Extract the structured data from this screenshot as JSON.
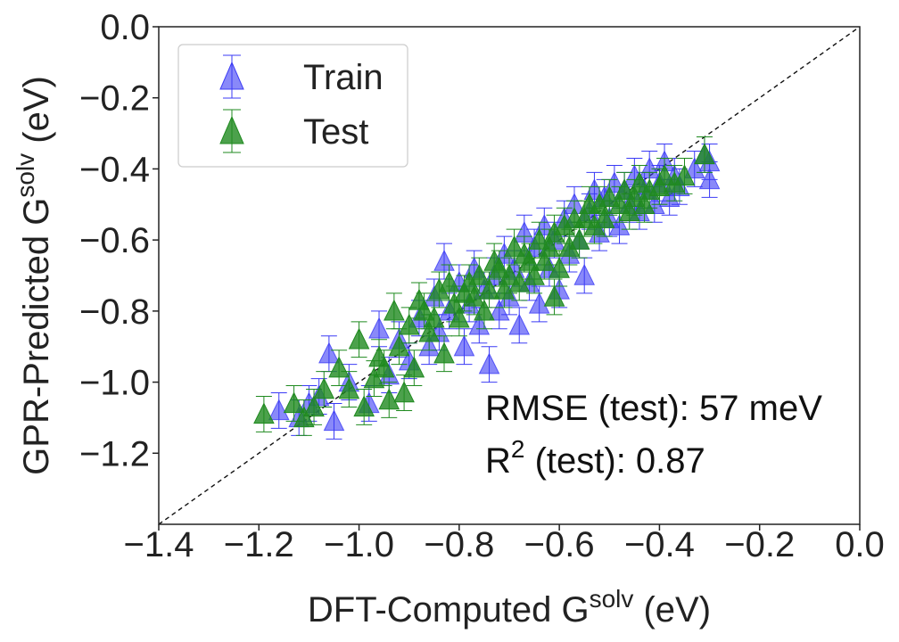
{
  "chart_data": {
    "type": "scatter",
    "title": "",
    "xlabel": {
      "prefix": "DFT-Computed G",
      "sup": "solv",
      "suffix": " (eV)"
    },
    "ylabel": {
      "prefix": "GPR-Predicted G",
      "sup": "solv",
      "suffix": " (eV)"
    },
    "xlim": [
      -1.4,
      0.0
    ],
    "ylim": [
      -1.4,
      0.0
    ],
    "x_ticks": [
      -1.4,
      -1.2,
      -1.0,
      -0.8,
      -0.6,
      -0.4,
      -0.2,
      0.0
    ],
    "x_tick_labels": [
      "−1.4",
      "−1.2",
      "−1.0",
      "−0.8",
      "−0.6",
      "−0.4",
      "−0.2",
      "0.0"
    ],
    "y_ticks": [
      -1.2,
      -1.0,
      -0.8,
      -0.6,
      -0.4,
      -0.2,
      0.0
    ],
    "y_tick_labels": [
      "−1.2",
      "−1.0",
      "−0.8",
      "−0.6",
      "−0.4",
      "−0.2",
      "0.0"
    ],
    "grid": false,
    "legend_position": "top-left",
    "parity_line": true,
    "series": [
      {
        "name": "Train",
        "color": "#3b3bf5",
        "marker": "triangle-up",
        "error_bar": 0.05,
        "points": [
          [
            -1.16,
            -1.08
          ],
          [
            -1.12,
            -1.1
          ],
          [
            -1.1,
            -1.06
          ],
          [
            -1.08,
            -1.04
          ],
          [
            -1.05,
            -1.11
          ],
          [
            -1.06,
            -0.92
          ],
          [
            -1.02,
            -1.0
          ],
          [
            -0.98,
            -1.06
          ],
          [
            -0.96,
            -0.85
          ],
          [
            -0.94,
            -0.98
          ],
          [
            -0.92,
            -0.88
          ],
          [
            -0.9,
            -0.94
          ],
          [
            -0.88,
            -0.82
          ],
          [
            -0.86,
            -0.9
          ],
          [
            -0.85,
            -0.76
          ],
          [
            -0.84,
            -0.86
          ],
          [
            -0.83,
            -0.66
          ],
          [
            -0.82,
            -0.8
          ],
          [
            -0.8,
            -0.72
          ],
          [
            -0.79,
            -0.9
          ],
          [
            -0.78,
            -0.78
          ],
          [
            -0.77,
            -0.68
          ],
          [
            -0.76,
            -0.84
          ],
          [
            -0.75,
            -0.74
          ],
          [
            -0.74,
            -0.95
          ],
          [
            -0.73,
            -0.7
          ],
          [
            -0.72,
            -0.8
          ],
          [
            -0.71,
            -0.64
          ],
          [
            -0.7,
            -0.76
          ],
          [
            -0.69,
            -0.68
          ],
          [
            -0.68,
            -0.84
          ],
          [
            -0.67,
            -0.58
          ],
          [
            -0.66,
            -0.72
          ],
          [
            -0.65,
            -0.62
          ],
          [
            -0.64,
            -0.78
          ],
          [
            -0.63,
            -0.56
          ],
          [
            -0.62,
            -0.68
          ],
          [
            -0.61,
            -0.6
          ],
          [
            -0.6,
            -0.74
          ],
          [
            -0.59,
            -0.54
          ],
          [
            -0.58,
            -0.64
          ],
          [
            -0.57,
            -0.5
          ],
          [
            -0.56,
            -0.6
          ],
          [
            -0.55,
            -0.7
          ],
          [
            -0.54,
            -0.52
          ],
          [
            -0.53,
            -0.46
          ],
          [
            -0.52,
            -0.58
          ],
          [
            -0.51,
            -0.48
          ],
          [
            -0.5,
            -0.54
          ],
          [
            -0.49,
            -0.44
          ],
          [
            -0.48,
            -0.56
          ],
          [
            -0.47,
            -0.46
          ],
          [
            -0.46,
            -0.5
          ],
          [
            -0.45,
            -0.42
          ],
          [
            -0.44,
            -0.52
          ],
          [
            -0.43,
            -0.46
          ],
          [
            -0.42,
            -0.4
          ],
          [
            -0.41,
            -0.5
          ],
          [
            -0.4,
            -0.44
          ],
          [
            -0.39,
            -0.38
          ],
          [
            -0.38,
            -0.48
          ],
          [
            -0.37,
            -0.42
          ],
          [
            -0.36,
            -0.45
          ],
          [
            -0.31,
            -0.36
          ],
          [
            -0.3,
            -0.38
          ],
          [
            -0.3,
            -0.43
          ],
          [
            -0.33,
            -0.4
          ]
        ]
      },
      {
        "name": "Test",
        "color": "#1f8a1f",
        "marker": "triangle-up",
        "error_bar": 0.05,
        "points": [
          [
            -1.19,
            -1.09
          ],
          [
            -1.13,
            -1.06
          ],
          [
            -1.09,
            -1.07
          ],
          [
            -1.07,
            -1.02
          ],
          [
            -1.04,
            -0.96
          ],
          [
            -1.02,
            -1.02
          ],
          [
            -1.0,
            -0.88
          ],
          [
            -0.99,
            -1.07
          ],
          [
            -0.97,
            -0.99
          ],
          [
            -0.95,
            -0.96
          ],
          [
            -0.94,
            -1.05
          ],
          [
            -0.93,
            -0.8
          ],
          [
            -0.91,
            -1.03
          ],
          [
            -0.9,
            -0.84
          ],
          [
            -0.89,
            -0.96
          ],
          [
            -0.87,
            -0.8
          ],
          [
            -0.86,
            -0.86
          ],
          [
            -0.84,
            -0.74
          ],
          [
            -0.83,
            -0.92
          ],
          [
            -0.81,
            -0.78
          ],
          [
            -0.8,
            -0.82
          ],
          [
            -0.78,
            -0.72
          ],
          [
            -0.77,
            -0.76
          ],
          [
            -0.76,
            -0.7
          ],
          [
            -0.75,
            -0.8
          ],
          [
            -0.74,
            -0.74
          ],
          [
            -0.72,
            -0.68
          ],
          [
            -0.71,
            -0.74
          ],
          [
            -0.7,
            -0.7
          ],
          [
            -0.69,
            -0.62
          ],
          [
            -0.68,
            -0.72
          ],
          [
            -0.66,
            -0.66
          ],
          [
            -0.65,
            -0.7
          ],
          [
            -0.64,
            -0.6
          ],
          [
            -0.63,
            -0.66
          ],
          [
            -0.62,
            -0.62
          ],
          [
            -0.61,
            -0.58
          ],
          [
            -0.6,
            -0.68
          ],
          [
            -0.59,
            -0.56
          ],
          [
            -0.58,
            -0.62
          ],
          [
            -0.57,
            -0.54
          ],
          [
            -0.56,
            -0.6
          ],
          [
            -0.55,
            -0.54
          ],
          [
            -0.54,
            -0.5
          ],
          [
            -0.53,
            -0.56
          ],
          [
            -0.52,
            -0.5
          ],
          [
            -0.51,
            -0.54
          ],
          [
            -0.5,
            -0.48
          ],
          [
            -0.48,
            -0.5
          ],
          [
            -0.47,
            -0.46
          ],
          [
            -0.46,
            -0.52
          ],
          [
            -0.45,
            -0.48
          ],
          [
            -0.44,
            -0.44
          ],
          [
            -0.43,
            -0.5
          ],
          [
            -0.42,
            -0.46
          ],
          [
            -0.4,
            -0.45
          ],
          [
            -0.39,
            -0.42
          ],
          [
            -0.37,
            -0.44
          ],
          [
            -0.35,
            -0.42
          ],
          [
            -0.31,
            -0.36
          ],
          [
            -1.11,
            -1.1
          ],
          [
            -0.79,
            -0.75
          ],
          [
            -0.82,
            -0.72
          ],
          [
            -0.85,
            -0.82
          ],
          [
            -0.67,
            -0.64
          ],
          [
            -0.61,
            -0.76
          ],
          [
            -0.92,
            -0.9
          ],
          [
            -0.88,
            -0.77
          ],
          [
            -0.96,
            -0.93
          ],
          [
            -0.73,
            -0.66
          ]
        ]
      }
    ],
    "annotations": {
      "rmse": "RMSE (test): 57 meV",
      "r2_prefix": "R",
      "r2_sup": "2",
      "r2_suffix": " (test): 0.87"
    }
  }
}
